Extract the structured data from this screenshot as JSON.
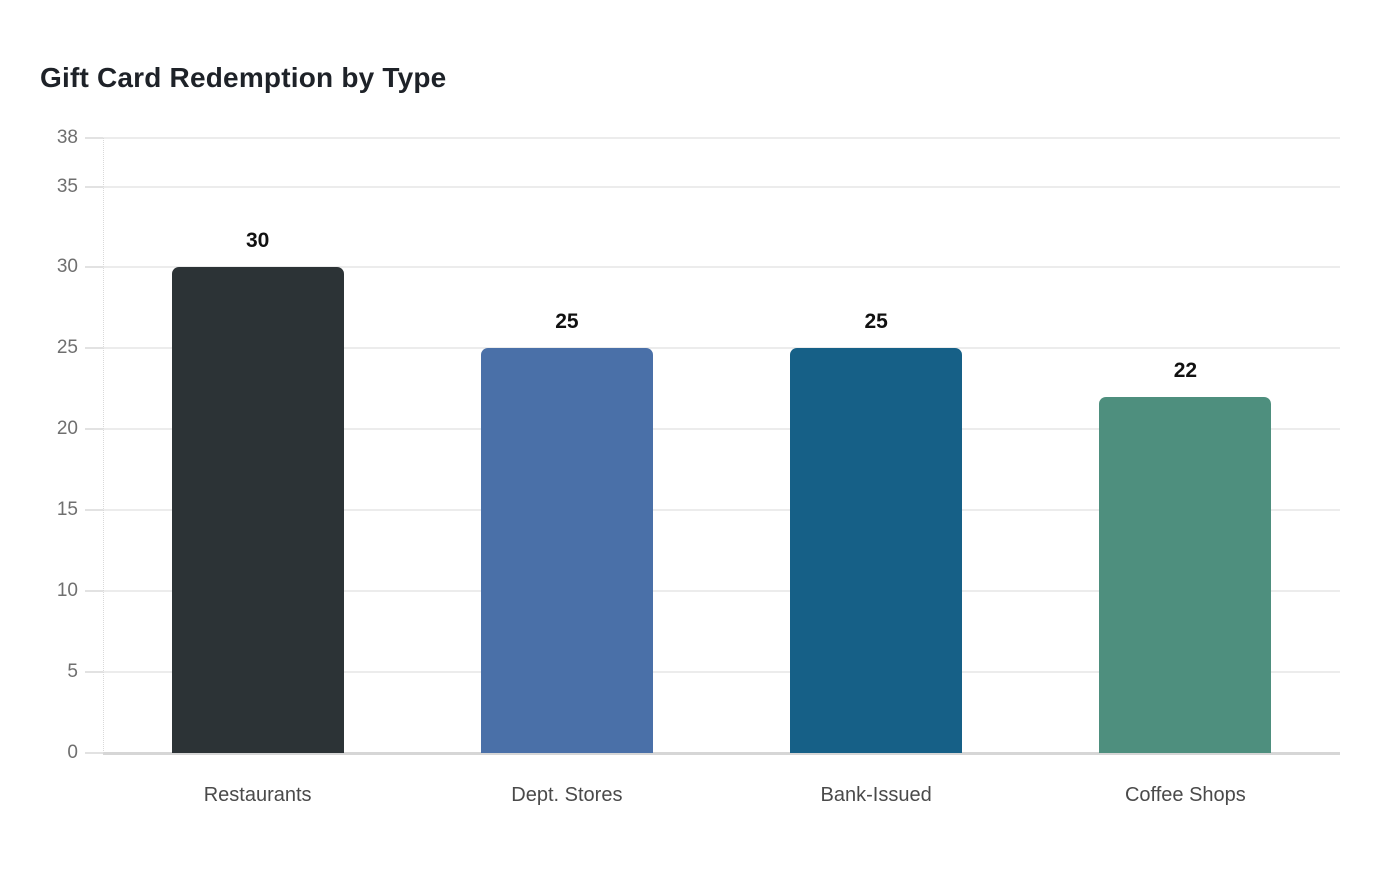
{
  "chart_data": {
    "type": "bar",
    "title": "Gift Card Redemption by Type",
    "categories": [
      "Restaurants",
      "Dept. Stores",
      "Bank-Issued",
      "Coffee Shops"
    ],
    "values": [
      30,
      25,
      25,
      22
    ],
    "value_labels": [
      "30",
      "25",
      "25",
      "22"
    ],
    "bar_colors": [
      "#2c3336",
      "#4a70a8",
      "#166087",
      "#4e8f7e"
    ],
    "yticks": [
      0,
      5,
      10,
      15,
      20,
      25,
      30,
      35,
      38
    ],
    "ylim": [
      0,
      38
    ],
    "xlabel": "",
    "ylabel": "",
    "grid": true,
    "legend": false,
    "background": "#ffffff"
  },
  "colors": {
    "grid": "#ececec",
    "baseline": "#d6d6d6",
    "tick_label": "#6f6f6f",
    "category_label": "#4a4a4a",
    "value_label": "#111111",
    "title": "#1e2228"
  }
}
